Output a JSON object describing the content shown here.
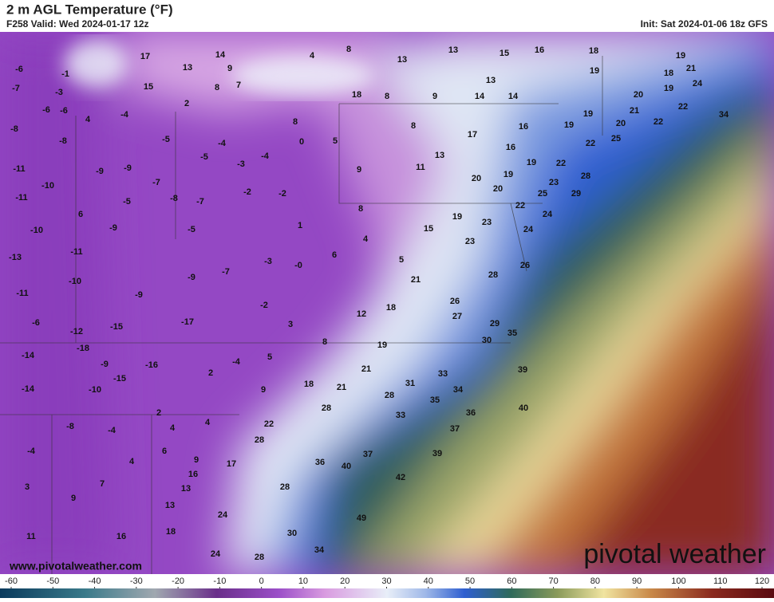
{
  "header": {
    "title": "2 m AGL Temperature (°F)",
    "valid": "F258 Valid: Wed 2024-01-17 12z",
    "init": "Init: Sat 2024-01-06 18z GFS"
  },
  "map": {
    "labels": [
      -6,
      -1,
      -7,
      -3,
      -6,
      -6,
      4,
      -4,
      -8,
      -8,
      -5,
      -4,
      -5,
      -3,
      -4,
      0,
      5,
      -11,
      -9,
      -9,
      -7,
      -10,
      -2,
      -2,
      -7,
      -8,
      -5,
      -11,
      6,
      -9,
      -10,
      -5,
      1,
      -13,
      -11,
      6,
      -3,
      {
        "value": 0,
        "label": "-0"
      },
      -7,
      -9,
      -10,
      -9,
      -11,
      -2,
      -6,
      -12,
      -15,
      -17,
      3,
      -14,
      -18,
      -9,
      -16,
      -4,
      5,
      8,
      2,
      -15,
      -14,
      -10,
      9,
      2,
      4,
      4,
      -8,
      -4,
      -4,
      6,
      9,
      4,
      16,
      17,
      7,
      3,
      13,
      9,
      13,
      24,
      18,
      16,
      11,
      24,
      28,
      17,
      14,
      13,
      9,
      15,
      8,
      7,
      2,
      4,
      8,
      13,
      13,
      15,
      16,
      18,
      19,
      21,
      13,
      19,
      18,
      19,
      24,
      18,
      8,
      9,
      14,
      14,
      20,
      22,
      34,
      21,
      19,
      19,
      16,
      20,
      22,
      25,
      22,
      8,
      8,
      17,
      16,
      13,
      11,
      9,
      19,
      22,
      28,
      19,
      20,
      20,
      23,
      29,
      25,
      8,
      22,
      24,
      19,
      23,
      15,
      24,
      4,
      23,
      5,
      26,
      28,
      21,
      26,
      18,
      27,
      12,
      29,
      35,
      30,
      19,
      39,
      33,
      21,
      18,
      21,
      31,
      34,
      28,
      35,
      40,
      28,
      33,
      36,
      22,
      37,
      28,
      37,
      39,
      36,
      40,
      42,
      28,
      49,
      30,
      34
    ]
  },
  "colorbar": {
    "lim": [
      -60,
      120
    ],
    "ticks": [
      -60,
      -50,
      -40,
      -30,
      -20,
      -10,
      0,
      10,
      20,
      30,
      40,
      50,
      60,
      70,
      80,
      90,
      100,
      110,
      120
    ]
  },
  "footer": {
    "url": "www.pivotalweather.com",
    "brand": "pivotal weather"
  }
}
